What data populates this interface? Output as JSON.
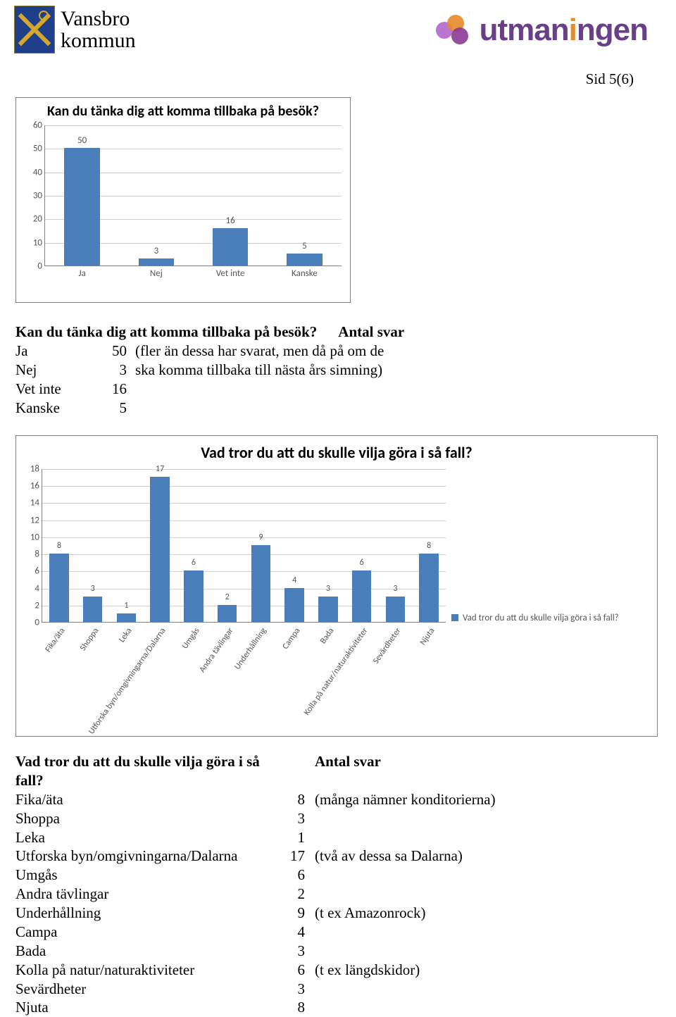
{
  "header": {
    "left_text_l1": "Vansbro",
    "left_text_l2": "kommun",
    "right_text": "utmaningen"
  },
  "page_number": "Sid 5(6)",
  "chart1": {
    "type": "bar",
    "title": "Kan du tänka dig att komma tillbaka på besök?",
    "categories": [
      "Ja",
      "Nej",
      "Vet inte",
      "Kanske"
    ],
    "values": [
      50,
      3,
      16,
      5
    ],
    "ylim": [
      0,
      60
    ],
    "ytick_step": 10,
    "bar_color": "#4a7ebb",
    "grid_color": "#d0d0d0",
    "label_fontsize": 13
  },
  "table1": {
    "title": "Kan du tänka dig att komma tillbaka på besök?",
    "header_val": "Antal svar",
    "rows": [
      {
        "label": "Ja",
        "value": "50",
        "note": "(fler än dessa har svarat, men då på om de"
      },
      {
        "label": "Nej",
        "value": "3",
        "note": "ska komma tillbaka till nästa års simning)"
      },
      {
        "label": "Vet inte",
        "value": "16",
        "note": ""
      },
      {
        "label": "Kanske",
        "value": "5",
        "note": ""
      }
    ]
  },
  "chart2": {
    "type": "bar",
    "title": "Vad tror du att du skulle vilja göra i så fall?",
    "legend_label": "Vad tror du att du skulle vilja göra i så fall?",
    "categories": [
      "Fika/äta",
      "Shoppa",
      "Leka",
      "Utforska byn/omgivningarna/Dalarna",
      "Umgås",
      "Andra tävlingar",
      "Underhållning",
      "Campa",
      "Bada",
      "Kolla på natur/naturaktiviteter",
      "Sevärdheter",
      "Njuta"
    ],
    "values": [
      8,
      3,
      1,
      17,
      6,
      2,
      9,
      4,
      3,
      6,
      3,
      8
    ],
    "ylim": [
      0,
      18
    ],
    "ytick_step": 2,
    "bar_color": "#4a7ebb",
    "grid_color": "#d0d0d0",
    "label_fontsize": 12
  },
  "table2": {
    "title": "Vad tror du att du skulle vilja göra i så fall?",
    "header_val": "Antal svar",
    "rows": [
      {
        "label": "Fika/äta",
        "value": "8",
        "note": "(många nämner konditorierna)"
      },
      {
        "label": "Shoppa",
        "value": "3",
        "note": ""
      },
      {
        "label": "Leka",
        "value": "1",
        "note": ""
      },
      {
        "label": "Utforska byn/omgivningarna/Dalarna",
        "value": "17",
        "note": "(två av dessa sa Dalarna)"
      },
      {
        "label": "Umgås",
        "value": "6",
        "note": ""
      },
      {
        "label": "Andra tävlingar",
        "value": "2",
        "note": ""
      },
      {
        "label": "Underhållning",
        "value": "9",
        "note": "(t ex Amazonrock)"
      },
      {
        "label": "Campa",
        "value": "4",
        "note": ""
      },
      {
        "label": "Bada",
        "value": "3",
        "note": ""
      },
      {
        "label": "Kolla på natur/naturaktiviteter",
        "value": "6",
        "note": "(t ex längdskidor)"
      },
      {
        "label": "Sevärdheter",
        "value": "3",
        "note": ""
      },
      {
        "label": "Njuta",
        "value": "8",
        "note": ""
      }
    ]
  }
}
